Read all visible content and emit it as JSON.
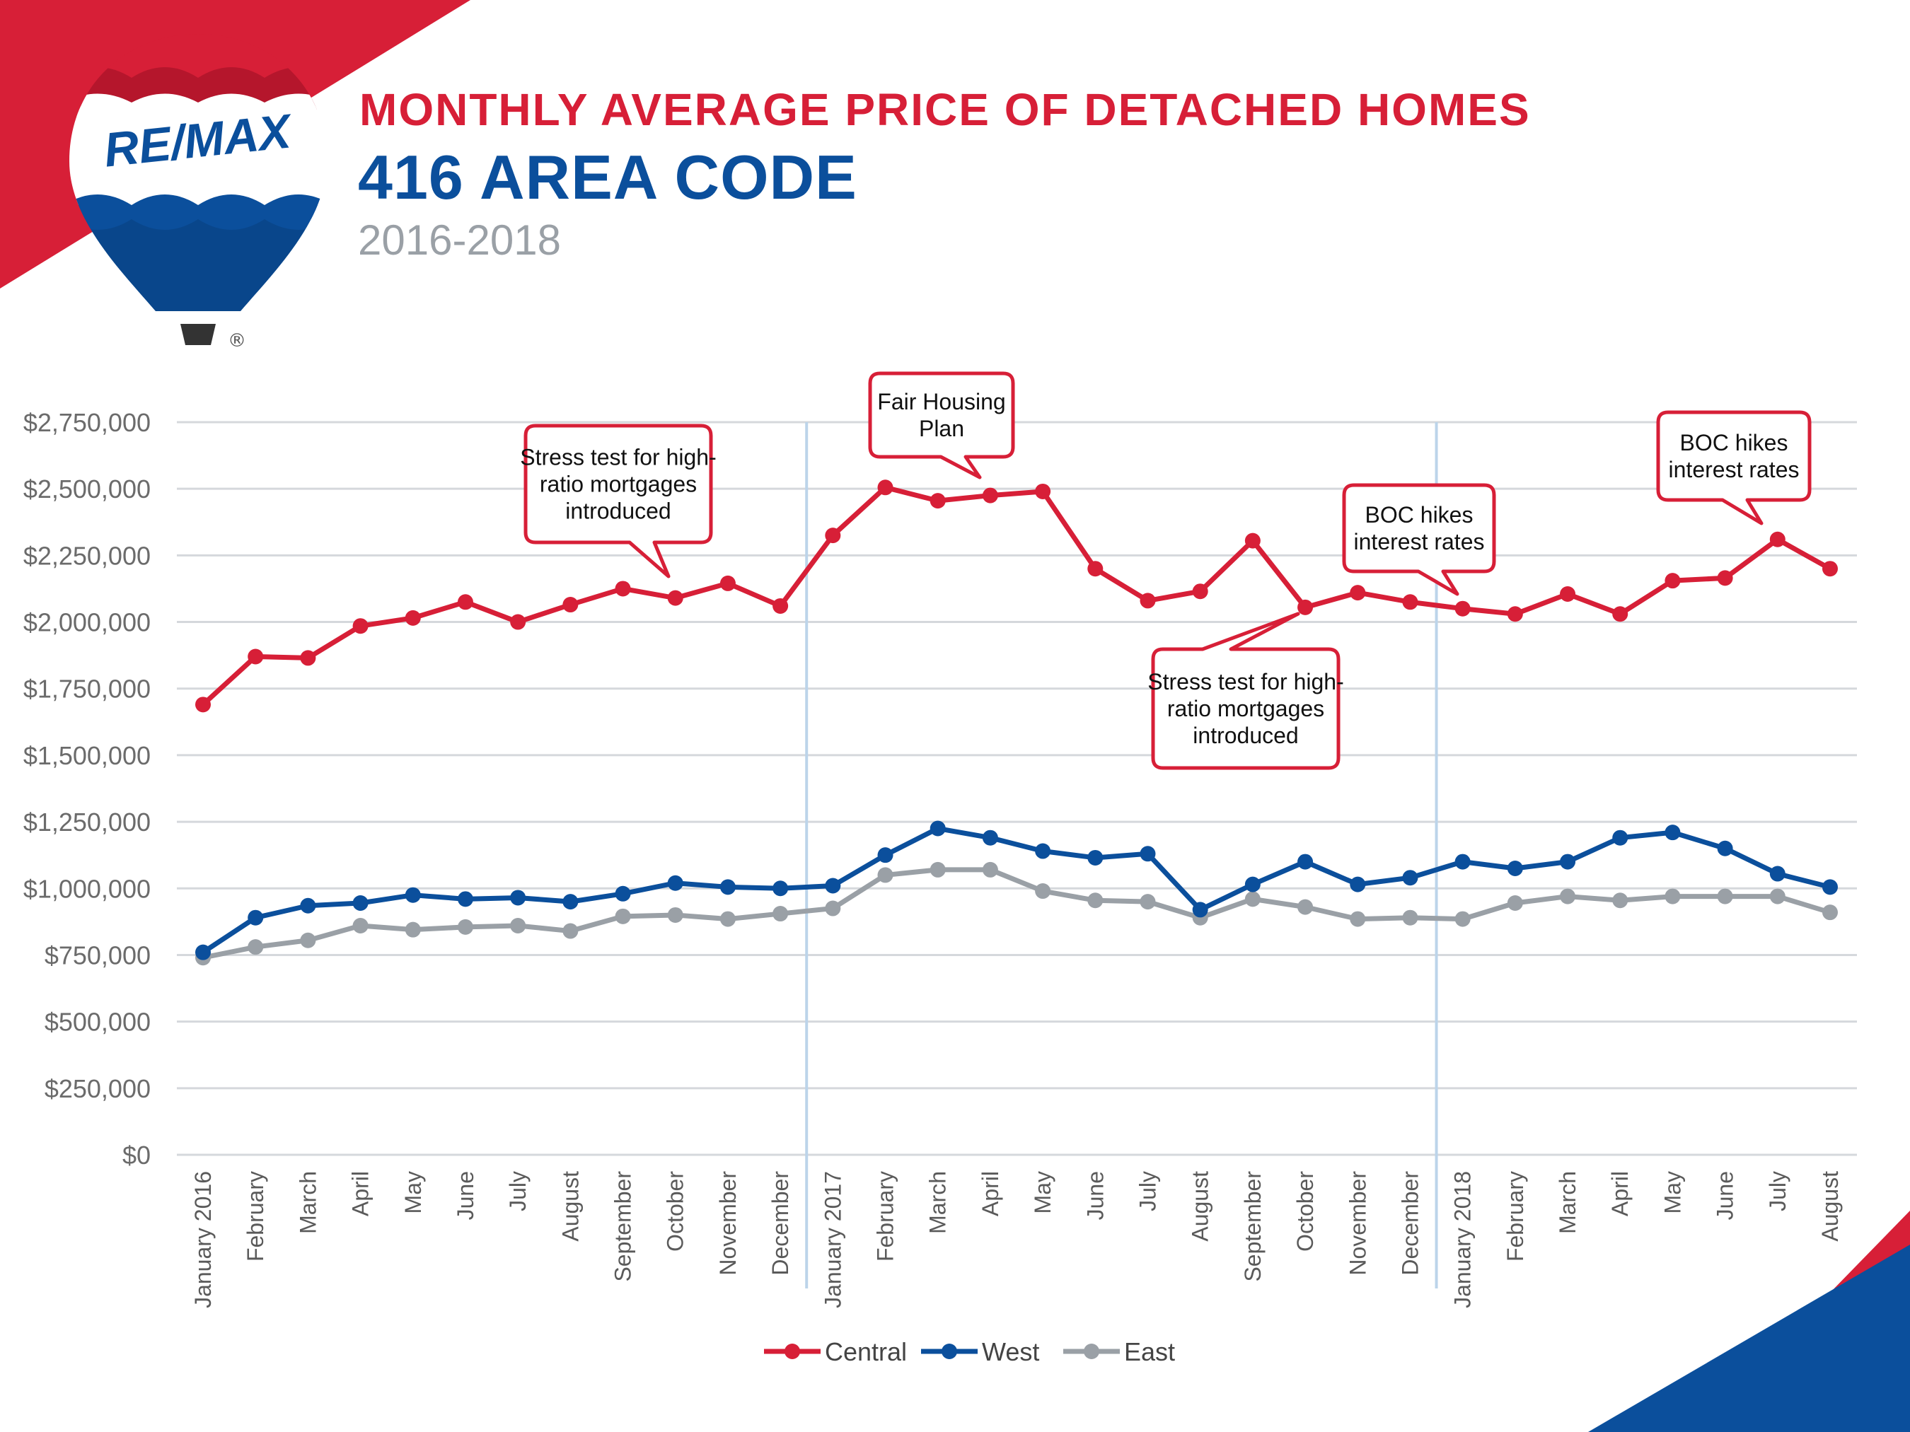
{
  "header": {
    "title": "MONTHLY AVERAGE PRICE OF DETACHED HOMES",
    "subtitle": "416 AREA CODE",
    "years": "2016-2018"
  },
  "logo": {
    "brand_text": "RE/MAX",
    "registered_mark": "®"
  },
  "colors": {
    "red": "#d71f37",
    "blue": "#0b4f9c",
    "gray": "#9aa0a6",
    "grid": "#d5d8dc",
    "year_divider": "#bcd4ea"
  },
  "chart_data": {
    "type": "line",
    "title": "MONTHLY AVERAGE PRICE OF DETACHED HOMES",
    "xlabel": "",
    "ylabel": "",
    "ylim": [
      0,
      2750000
    ],
    "yticks": [
      0,
      250000,
      500000,
      750000,
      1000000,
      1250000,
      1500000,
      1750000,
      2000000,
      2250000,
      2500000,
      2750000
    ],
    "ytick_labels": [
      "$0",
      "$250,000",
      "$500,000",
      "$750,000",
      "$1,000,000",
      "$1,250,000",
      "$1,500,000",
      "$1,750,000",
      "$2,000,000",
      "$2,250,000",
      "$2,500,000",
      "$2,750,000"
    ],
    "grid": true,
    "categories": [
      "January 2016",
      "February",
      "March",
      "April",
      "May",
      "June",
      "July",
      "August",
      "September",
      "October",
      "November",
      "December",
      "January 2017",
      "February",
      "March",
      "April",
      "May",
      "June",
      "July",
      "August",
      "September",
      "October",
      "November",
      "December",
      "January 2018",
      "February",
      "March",
      "April",
      "May",
      "June",
      "July",
      "August"
    ],
    "year_dividers_after_index": [
      11,
      23
    ],
    "series": [
      {
        "name": "Central",
        "color": "#d71f37",
        "values": [
          1690000,
          1870000,
          1865000,
          1985000,
          2015000,
          2075000,
          2000000,
          2065000,
          2125000,
          2090000,
          2145000,
          2060000,
          2325000,
          2505000,
          2455000,
          2475000,
          2490000,
          2200000,
          2080000,
          2115000,
          2305000,
          2055000,
          2110000,
          2075000,
          2050000,
          2030000,
          2105000,
          2030000,
          2155000,
          2165000,
          2310000,
          2200000
        ]
      },
      {
        "name": "West",
        "color": "#0b4f9c",
        "values": [
          760000,
          890000,
          935000,
          945000,
          975000,
          960000,
          965000,
          950000,
          980000,
          1020000,
          1005000,
          1000000,
          1010000,
          1125000,
          1225000,
          1190000,
          1140000,
          1115000,
          1130000,
          920000,
          1015000,
          1100000,
          1015000,
          1040000,
          1100000,
          1075000,
          1100000,
          1190000,
          1210000,
          1150000,
          1055000,
          1005000
        ]
      },
      {
        "name": "East",
        "color": "#9aa0a6",
        "values": [
          740000,
          780000,
          805000,
          860000,
          845000,
          855000,
          860000,
          840000,
          895000,
          900000,
          885000,
          905000,
          925000,
          1050000,
          1070000,
          1070000,
          990000,
          955000,
          950000,
          890000,
          960000,
          930000,
          885000,
          890000,
          885000,
          945000,
          970000,
          955000,
          970000,
          970000,
          970000,
          910000
        ]
      }
    ],
    "annotations": [
      {
        "text_lines": [
          "Stress test for high-",
          "ratio mortgages",
          "introduced"
        ],
        "target_index": 9,
        "target_series": "Central",
        "placement": "above"
      },
      {
        "text_lines": [
          "Fair Housing",
          "Plan"
        ],
        "target_index": 15,
        "target_series": "Central",
        "placement": "above"
      },
      {
        "text_lines": [
          "Stress test for high-",
          "ratio mortgages",
          "introduced"
        ],
        "target_index": 21,
        "target_series": "Central",
        "placement": "below"
      },
      {
        "text_lines": [
          "BOC hikes",
          "interest rates"
        ],
        "target_index": 24,
        "target_series": "Central",
        "placement": "above"
      },
      {
        "text_lines": [
          "BOC hikes",
          "interest rates"
        ],
        "target_index": 30,
        "target_series": "Central",
        "placement": "above"
      }
    ],
    "legend": {
      "placement": "bottom-center",
      "entries": [
        "Central",
        "West",
        "East"
      ]
    }
  }
}
